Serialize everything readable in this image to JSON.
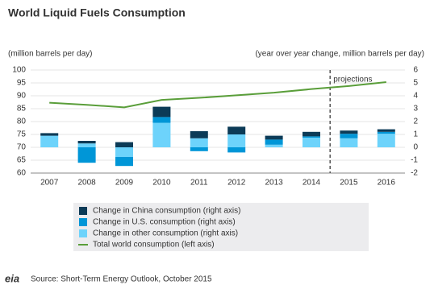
{
  "chart_data": {
    "type": "bar",
    "stacked": true,
    "title": "World Liquid Fuels Consumption",
    "y_label": "(million barrels per day)",
    "y2_label": "(year over year change, million barrels per day)",
    "categories": [
      "2007",
      "2008",
      "2009",
      "2010",
      "2011",
      "2012",
      "2013",
      "2014",
      "2015",
      "2016"
    ],
    "ylim": [
      60,
      100
    ],
    "yticks": [
      60,
      65,
      70,
      75,
      80,
      85,
      90,
      95,
      100
    ],
    "y2lim": [
      -2,
      6
    ],
    "y2ticks": [
      -2,
      -1,
      0,
      1,
      2,
      3,
      4,
      5,
      6
    ],
    "grid": true,
    "y_color": "#5a9e3a",
    "y2_color": "#1a9bd7",
    "series": [
      {
        "name": "Change in China consumption (right axis)",
        "type": "bar",
        "axis": "y2",
        "color": "#0c3b57",
        "values": [
          0.2,
          0.2,
          0.4,
          0.8,
          0.55,
          0.6,
          0.3,
          0.35,
          0.25,
          0.2
        ]
      },
      {
        "name": "Change in U.S. consumption (right axis)",
        "type": "bar",
        "axis": "y2",
        "color": "#0096d7",
        "values": [
          0,
          -1.2,
          -0.7,
          0.45,
          -0.3,
          -0.4,
          0.4,
          0.1,
          0.35,
          0.15
        ]
      },
      {
        "name": "Change in other consumption (right axis)",
        "type": "bar",
        "axis": "y2",
        "color": "#6dd3fb",
        "values": [
          0.9,
          0.3,
          -0.75,
          1.9,
          0.7,
          1.0,
          0.2,
          0.75,
          0.7,
          1.05
        ]
      },
      {
        "name": "Total world consumption (left axis)",
        "type": "line",
        "axis": "y",
        "color": "#5a9e3a",
        "values": [
          87.3,
          86.5,
          85.5,
          88.4,
          89.2,
          90.2,
          91.2,
          92.6,
          93.8,
          95.3
        ]
      }
    ],
    "stack_order": [
      2,
      1,
      0
    ],
    "annotations": [
      {
        "text": "projections",
        "after": "2014"
      }
    ],
    "source": "Source: Short-Term Energy Outlook, October 2015",
    "logo": "eia"
  }
}
